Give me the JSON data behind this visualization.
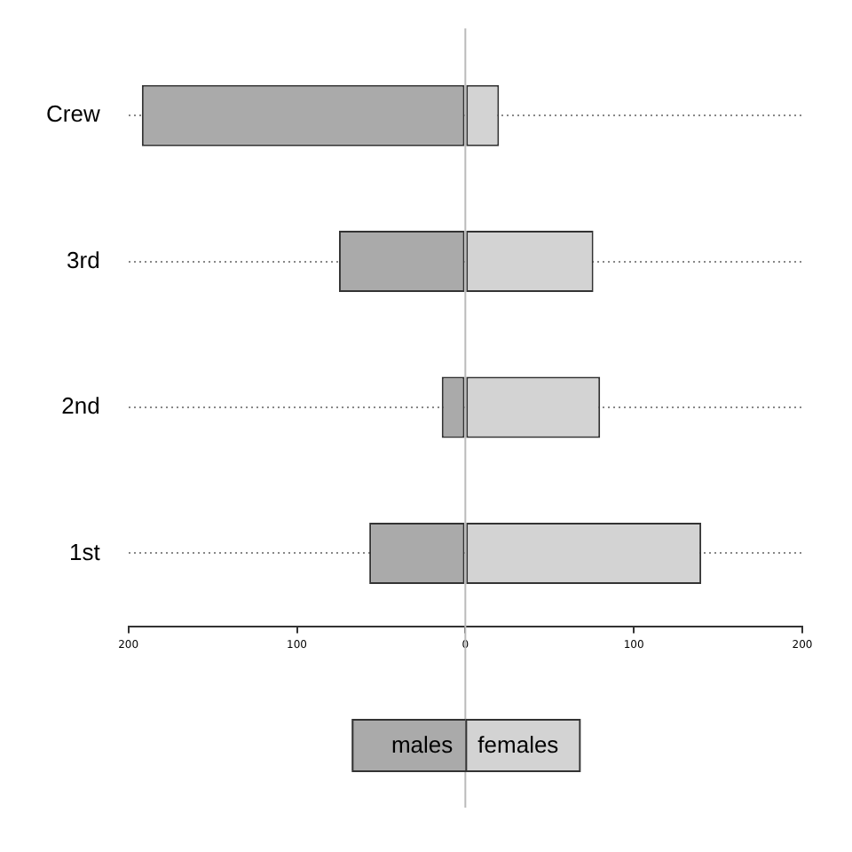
{
  "chart_data": {
    "type": "bar",
    "orientation": "horizontal",
    "stacked": true,
    "categories": [
      "Crew",
      "3rd",
      "2nd",
      "1st"
    ],
    "series": [
      {
        "name": "males",
        "color": "#aaaaaa",
        "values": [
          -192,
          -75,
          -14,
          -57
        ]
      },
      {
        "name": "females",
        "color": "#d3d3d3",
        "values": [
          20,
          76,
          80,
          140
        ]
      }
    ],
    "xlim": [
      -200,
      200
    ],
    "xticks": [
      {
        "value": -200,
        "label": "200"
      },
      {
        "value": -100,
        "label": "100"
      },
      0,
      100,
      200
    ],
    "ref_lines": [
      {
        "axis": "x",
        "value": 0,
        "color": "#bbbbbb"
      }
    ],
    "grid": "y",
    "legend": "bottom"
  }
}
